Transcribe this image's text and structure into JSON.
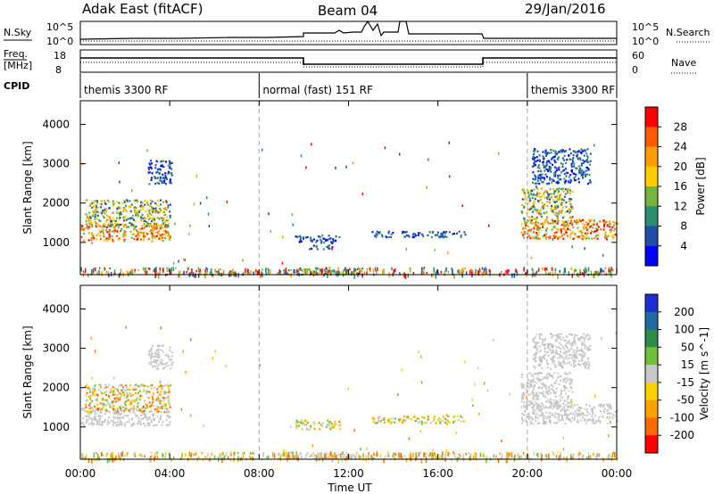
{
  "header": {
    "station": "Adak East (fitACF)",
    "beam": "Beam 04",
    "date": "29/Jan/2016"
  },
  "left_labels": {
    "nsky": "N.Sky",
    "freq_line1": "Freq.",
    "freq_line2": "[MHz]",
    "cpid": "CPID"
  },
  "right_labels": {
    "nsearch": "N.Search",
    "nave": "Nave"
  },
  "noise_panel": {
    "left_ticks": [
      "10^5",
      "10^0"
    ],
    "right_ticks": [
      "10^5",
      "10^0"
    ]
  },
  "freq_panel": {
    "left_ticks": [
      "18",
      "8"
    ],
    "right_ticks": [
      "60",
      "0"
    ]
  },
  "cpid_segments": [
    {
      "start": 0,
      "end": 8.0,
      "label": "themis 3300 RF"
    },
    {
      "start": 8.0,
      "end": 20.0,
      "label": "normal (fast) 151 RF"
    },
    {
      "start": 20.0,
      "end": 24.0,
      "label": "themis 3300 RF"
    }
  ],
  "x_axis": {
    "label": "Time UT",
    "ticks": [
      "00:00",
      "04:00",
      "08:00",
      "12:00",
      "16:00",
      "20:00",
      "00:00"
    ]
  },
  "y_axis": {
    "label": "Slant Range [km]",
    "ticks": [
      "4000",
      "3000",
      "2000",
      "1000"
    ]
  },
  "power_colorbar": {
    "label": "Power [dB]",
    "ticks": [
      "28",
      "24",
      "20",
      "16",
      "12",
      "8",
      "4"
    ],
    "colors": [
      "#ff0000",
      "#ff5a00",
      "#ff9c00",
      "#fecd00",
      "#74b43c",
      "#2a8e6e",
      "#1f4fa8",
      "#0000ff"
    ]
  },
  "velocity_colorbar": {
    "label": "Velocity [m s^-1]",
    "ticks": [
      "200",
      "100",
      "50",
      "15",
      "-15",
      "-50",
      "-100",
      "-200"
    ],
    "colors": [
      "#1c2fd0",
      "#1f6aa0",
      "#2c8a4a",
      "#70c03a",
      "#c8c8c8",
      "#fdd000",
      "#ffa200",
      "#ff6a00",
      "#ff0000"
    ]
  },
  "chart_data": {
    "type": "heatmap",
    "x": {
      "unit": "hours UT",
      "range": [
        0,
        24
      ]
    },
    "y": {
      "label": "Slant Range [km]",
      "range": [
        180,
        4600
      ]
    },
    "panels": [
      {
        "name": "Power",
        "regions": [
          {
            "t0": 0.0,
            "t1": 4.0,
            "r0": 1050,
            "r1": 1500,
            "value": "20-28 dB",
            "level": "high"
          },
          {
            "t0": 0.2,
            "t1": 4.0,
            "r0": 1400,
            "r1": 2100,
            "value": "12-16 dB",
            "level": "mid"
          },
          {
            "t0": 3.0,
            "t1": 4.1,
            "r0": 2500,
            "r1": 3100,
            "value": "4-8 dB",
            "level": "low"
          },
          {
            "t0": 9.6,
            "t1": 11.6,
            "r0": 1000,
            "r1": 1200,
            "value": "4-8 dB",
            "level": "low"
          },
          {
            "t0": 10.2,
            "t1": 11.4,
            "r0": 850,
            "r1": 950,
            "value": "4-8 dB",
            "level": "low"
          },
          {
            "t0": 13.0,
            "t1": 17.2,
            "r0": 1150,
            "r1": 1300,
            "value": "4-8 dB",
            "level": "low"
          },
          {
            "t0": 8.8,
            "t1": 12.6,
            "r0": 200,
            "r1": 380,
            "value": "12-16 dB",
            "level": "mid"
          },
          {
            "t0": 19.7,
            "t1": 24.0,
            "r0": 1100,
            "r1": 1600,
            "value": "16-24 dB",
            "level": "high"
          },
          {
            "t0": 19.7,
            "t1": 22.0,
            "r0": 1500,
            "r1": 2400,
            "value": "8-12 dB",
            "level": "mid"
          },
          {
            "t0": 20.2,
            "t1": 22.8,
            "r0": 2500,
            "r1": 3400,
            "value": "4-8 dB",
            "level": "low"
          }
        ]
      },
      {
        "name": "Velocity",
        "regions": [
          {
            "t0": 0.0,
            "t1": 4.0,
            "r0": 1050,
            "r1": 1500,
            "value": "-15 to 15 m/s",
            "level": "ground"
          },
          {
            "t0": 0.2,
            "t1": 4.0,
            "r0": 1400,
            "r1": 2100,
            "value": "-50 to 15 m/s",
            "level": "mix"
          },
          {
            "t0": 3.0,
            "t1": 4.1,
            "r0": 2500,
            "r1": 3100,
            "value": "-15 to 15 m/s",
            "level": "ground"
          },
          {
            "t0": 9.6,
            "t1": 11.6,
            "r0": 950,
            "r1": 1200,
            "value": "-50 to -15 m/s",
            "level": "neg"
          },
          {
            "t0": 13.0,
            "t1": 17.2,
            "r0": 1100,
            "r1": 1300,
            "value": "-50 to -15 m/s",
            "level": "neg"
          },
          {
            "t0": 8.8,
            "t1": 12.6,
            "r0": 200,
            "r1": 380,
            "value": "-15 to 15 m/s",
            "level": "ground"
          },
          {
            "t0": 19.7,
            "t1": 24.0,
            "r0": 1100,
            "r1": 1600,
            "value": "-15 to 15 m/s",
            "level": "ground"
          },
          {
            "t0": 19.7,
            "t1": 22.0,
            "r0": 1500,
            "r1": 2400,
            "value": "-15 to 15 m/s",
            "level": "ground"
          },
          {
            "t0": 20.2,
            "t1": 22.8,
            "r0": 2500,
            "r1": 3400,
            "value": "-15 to 15 m/s",
            "level": "ground"
          }
        ]
      }
    ]
  }
}
